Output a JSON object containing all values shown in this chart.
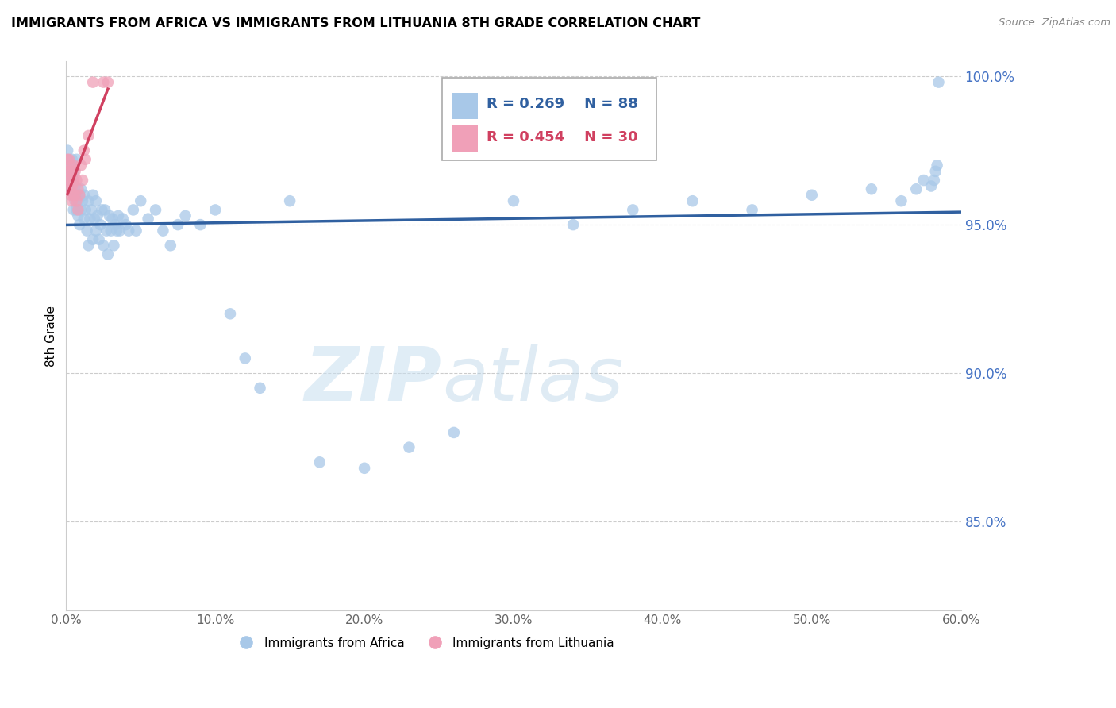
{
  "title": "IMMIGRANTS FROM AFRICA VS IMMIGRANTS FROM LITHUANIA 8TH GRADE CORRELATION CHART",
  "source": "Source: ZipAtlas.com",
  "ylabel": "8th Grade",
  "legend_label1": "Immigrants from Africa",
  "legend_label2": "Immigrants from Lithuania",
  "R1": 0.269,
  "N1": 88,
  "R2": 0.454,
  "N2": 30,
  "xlim": [
    0.0,
    0.6
  ],
  "ylim": [
    0.82,
    1.005
  ],
  "xticks": [
    0.0,
    0.1,
    0.2,
    0.3,
    0.4,
    0.5,
    0.6
  ],
  "yticks": [
    0.85,
    0.9,
    0.95,
    1.0
  ],
  "blue_color": "#a8c8e8",
  "blue_line_color": "#3060a0",
  "pink_color": "#f0a0b8",
  "pink_line_color": "#d04060",
  "blue_x": [
    0.001,
    0.002,
    0.002,
    0.003,
    0.003,
    0.004,
    0.004,
    0.005,
    0.005,
    0.005,
    0.006,
    0.006,
    0.007,
    0.007,
    0.007,
    0.008,
    0.008,
    0.009,
    0.009,
    0.01,
    0.01,
    0.011,
    0.012,
    0.012,
    0.013,
    0.014,
    0.015,
    0.015,
    0.016,
    0.017,
    0.018,
    0.018,
    0.019,
    0.02,
    0.02,
    0.021,
    0.022,
    0.023,
    0.024,
    0.025,
    0.026,
    0.027,
    0.028,
    0.029,
    0.03,
    0.031,
    0.032,
    0.033,
    0.034,
    0.035,
    0.036,
    0.038,
    0.04,
    0.042,
    0.045,
    0.047,
    0.05,
    0.055,
    0.06,
    0.065,
    0.07,
    0.075,
    0.08,
    0.09,
    0.1,
    0.11,
    0.12,
    0.13,
    0.15,
    0.17,
    0.2,
    0.23,
    0.26,
    0.3,
    0.34,
    0.38,
    0.42,
    0.46,
    0.5,
    0.54,
    0.56,
    0.57,
    0.575,
    0.58,
    0.582,
    0.583,
    0.584,
    0.585
  ],
  "blue_y": [
    0.975,
    0.968,
    0.962,
    0.97,
    0.965,
    0.966,
    0.972,
    0.96,
    0.955,
    0.968,
    0.958,
    0.963,
    0.96,
    0.955,
    0.972,
    0.953,
    0.958,
    0.96,
    0.95,
    0.955,
    0.962,
    0.958,
    0.952,
    0.96,
    0.955,
    0.948,
    0.958,
    0.943,
    0.952,
    0.955,
    0.96,
    0.945,
    0.952,
    0.948,
    0.958,
    0.953,
    0.945,
    0.95,
    0.955,
    0.943,
    0.955,
    0.948,
    0.94,
    0.953,
    0.948,
    0.952,
    0.943,
    0.95,
    0.948,
    0.953,
    0.948,
    0.952,
    0.95,
    0.948,
    0.955,
    0.948,
    0.958,
    0.952,
    0.955,
    0.948,
    0.943,
    0.95,
    0.953,
    0.95,
    0.955,
    0.92,
    0.905,
    0.895,
    0.958,
    0.87,
    0.868,
    0.875,
    0.88,
    0.958,
    0.95,
    0.955,
    0.958,
    0.955,
    0.96,
    0.962,
    0.958,
    0.962,
    0.965,
    0.963,
    0.965,
    0.968,
    0.97,
    0.998
  ],
  "pink_x": [
    0.001,
    0.001,
    0.001,
    0.002,
    0.002,
    0.002,
    0.003,
    0.003,
    0.003,
    0.004,
    0.004,
    0.004,
    0.005,
    0.005,
    0.005,
    0.006,
    0.006,
    0.007,
    0.007,
    0.008,
    0.008,
    0.009,
    0.01,
    0.011,
    0.012,
    0.013,
    0.015,
    0.018,
    0.025,
    0.028
  ],
  "pink_y": [
    0.972,
    0.968,
    0.965,
    0.972,
    0.968,
    0.962,
    0.97,
    0.965,
    0.96,
    0.968,
    0.963,
    0.958,
    0.97,
    0.965,
    0.96,
    0.968,
    0.96,
    0.965,
    0.958,
    0.962,
    0.955,
    0.96,
    0.97,
    0.965,
    0.975,
    0.972,
    0.98,
    0.998,
    0.998,
    0.998
  ],
  "watermark_zip": "ZIP",
  "watermark_atlas": "atlas"
}
